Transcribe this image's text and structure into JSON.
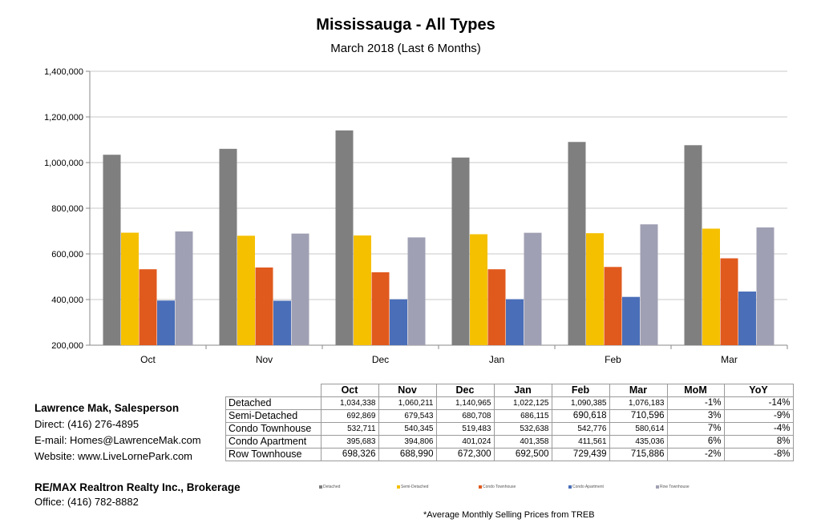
{
  "chart_data": {
    "type": "bar",
    "title": "Mississauga - All Types",
    "subtitle": "March 2018 (Last 6 Months)",
    "categories": [
      "Oct",
      "Nov",
      "Dec",
      "Jan",
      "Feb",
      "Mar"
    ],
    "ylim": [
      200000,
      1400000
    ],
    "yticks": [
      200000,
      400000,
      600000,
      800000,
      1000000,
      1200000,
      1400000
    ],
    "ytick_labels": [
      "200,000",
      "400,000",
      "600,000",
      "800,000",
      "1,000,000",
      "1,200,000",
      "1,400,000"
    ],
    "grid": true,
    "legend_position": "bottom",
    "series": [
      {
        "name": "Detached",
        "color": "#7f7f7f",
        "values": [
          1034338,
          1060211,
          1140965,
          1022125,
          1090385,
          1076183
        ]
      },
      {
        "name": "Semi-Detached",
        "color": "#f5c000",
        "values": [
          692869,
          679543,
          680708,
          686115,
          690618,
          710596
        ]
      },
      {
        "name": "Condo Townhouse",
        "color": "#e05a1e",
        "values": [
          532711,
          540345,
          519483,
          532638,
          542776,
          580614
        ]
      },
      {
        "name": "Condo Apartment",
        "color": "#4a6eb8",
        "values": [
          395683,
          394806,
          401024,
          401358,
          411561,
          435036
        ]
      },
      {
        "name": "Row Townhouse",
        "color": "#a0a0b4",
        "values": [
          698326,
          688990,
          672300,
          692500,
          729439,
          715886
        ]
      }
    ]
  },
  "table": {
    "headers": [
      "Oct",
      "Nov",
      "Dec",
      "Jan",
      "Feb",
      "Mar",
      "MoM",
      "YoY"
    ],
    "rows": [
      {
        "label": "Detached",
        "cells": [
          "1,034,338",
          "1,060,211",
          "1,140,965",
          "1,022,125",
          "1,090,385",
          "1,076,183",
          "-1%",
          "-14%"
        ]
      },
      {
        "label": "Semi-Detached",
        "cells": [
          "692,869",
          "679,543",
          "680,708",
          "686,115",
          "690,618",
          "710,596",
          "3%",
          "-9%"
        ]
      },
      {
        "label": "Condo Townhouse",
        "cells": [
          "532,711",
          "540,345",
          "519,483",
          "532,638",
          "542,776",
          "580,614",
          "7%",
          "-4%"
        ]
      },
      {
        "label": "Condo Apartment",
        "cells": [
          "395,683",
          "394,806",
          "401,024",
          "401,358",
          "411,561",
          "435,036",
          "6%",
          "8%"
        ]
      },
      {
        "label": "Row Townhouse",
        "cells": [
          "698,326",
          "688,990",
          "672,300",
          "692,500",
          "729,439",
          "715,886",
          "-2%",
          "-8%"
        ]
      }
    ]
  },
  "contact": {
    "name": "Lawrence Mak, Salesperson",
    "direct": "Direct:  (416) 276-4895",
    "email": "E-mail:  Homes@LawrenceMak.com",
    "website": "Website: www.LiveLornePark.com"
  },
  "brokerage": {
    "name": "RE/MAX Realtron Realty Inc., Brokerage",
    "office": "Office: (416) 782-8882"
  },
  "footnote": "*Average Monthly Selling Prices  from TREB"
}
